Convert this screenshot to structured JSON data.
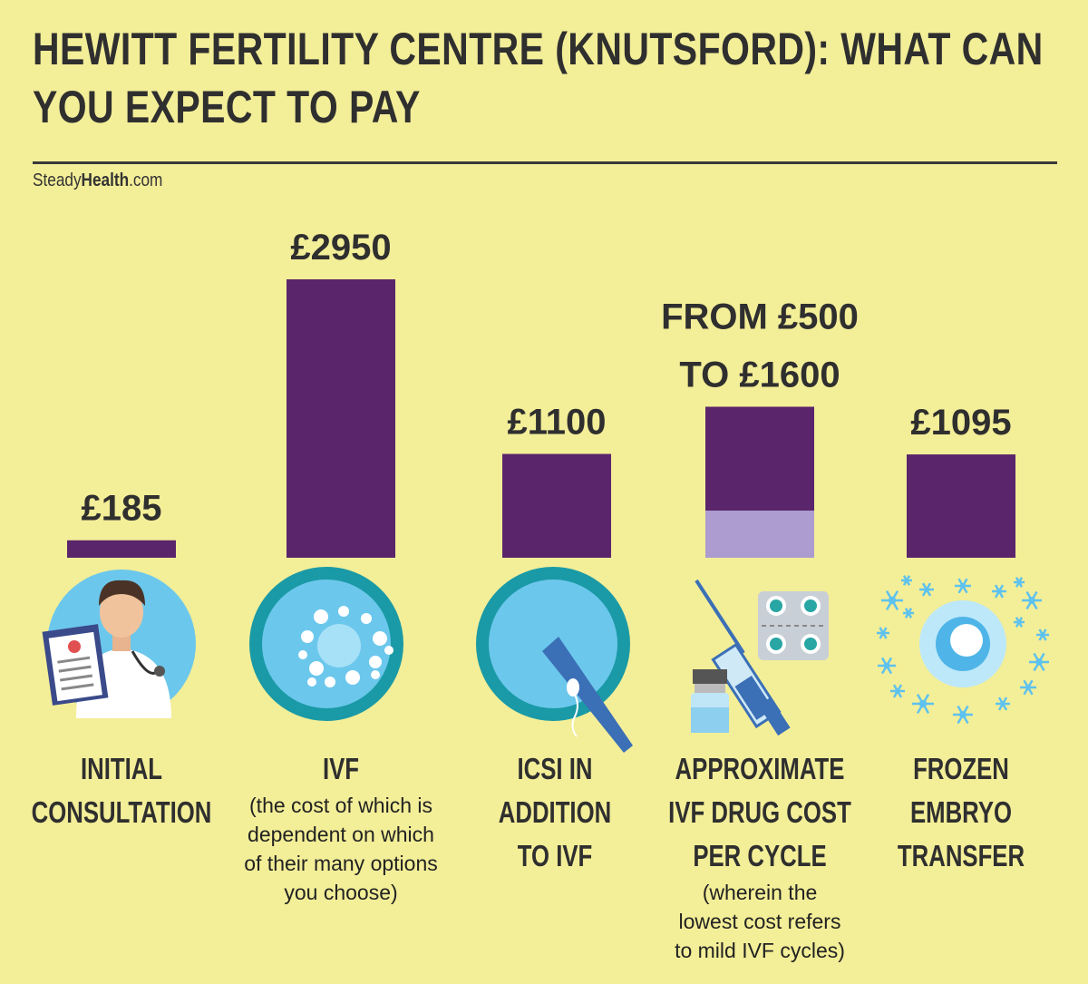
{
  "header": {
    "title": "HEWITT FERTILITY CENTRE (KNUTSFORD): WHAT CAN YOU EXPECT TO PAY",
    "brand_plain": "Steady",
    "brand_bold": "Health",
    "brand_suffix": ".com"
  },
  "colors": {
    "background": "#f3ee98",
    "bar": "#5a256b",
    "bar_light": "#ac9ccf",
    "icon_blue": "#6cc7ec",
    "icon_teal": "#1a9aa6"
  },
  "chart_data": {
    "type": "bar",
    "categories": [
      "INITIAL CONSULTATION",
      "IVF",
      "ICSI IN ADDITION TO IVF",
      "APPROXIMATE IVF DRUG COST PER CYCLE",
      "FROZEN EMBRYO TRANSFER"
    ],
    "values": [
      185,
      2950,
      1100,
      1600,
      1095
    ],
    "range_low": [
      null,
      null,
      null,
      500,
      null
    ],
    "value_labels": [
      "£185",
      "£2950",
      "£1100",
      "FROM £500\nTO £1600",
      "£1095"
    ],
    "category_labels": [
      "INITIAL\nCONSULTATION",
      "IVF",
      "ICSI IN\nADDITION\nTO IVF",
      "APPROXIMATE\nIVF DRUG COST\nPER CYCLE",
      "FROZEN\nEMBRYO\nTRANSFER"
    ],
    "notes": [
      "",
      "(the cost of which is\ndependent on which\nof their many options\nyou choose)",
      "",
      "(wherein the\nlowest cost refers\nto mild IVF cycles)",
      ""
    ],
    "icons": [
      "doctor-icon",
      "egg-cell-icon",
      "icsi-injection-icon",
      "medication-icon",
      "frozen-embryo-icon"
    ],
    "ylim": [
      0,
      3000
    ]
  }
}
